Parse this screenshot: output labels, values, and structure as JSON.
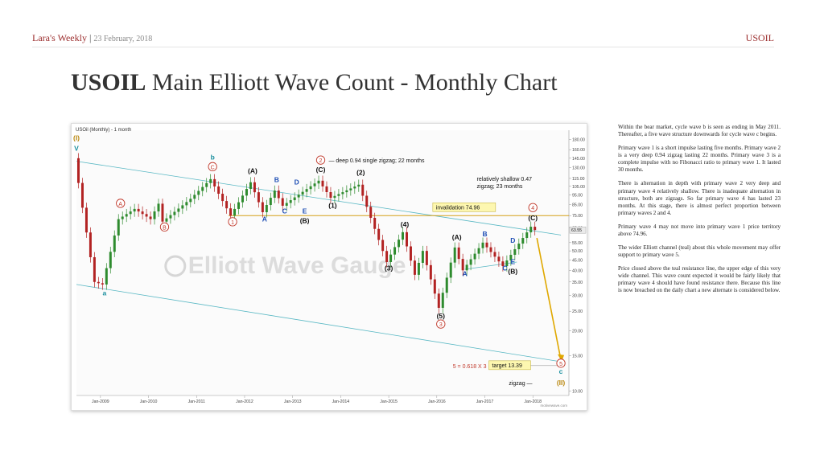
{
  "header": {
    "brand": "Lara's Weekly",
    "separator": "|",
    "date": "23 February, 2018",
    "ticker": "USOIL"
  },
  "title": {
    "bold": "USOIL",
    "rest": "Main Elliott Wave Count - Monthly Chart"
  },
  "notes": [
    "Within the bear market, cycle wave b is seen as ending in May 2011. Thereafter, a five wave structure downwards for cycle wave c begins.",
    "Primary wave 1 is a short impulse lasting five months. Primary wave 2 is a very deep 0.94 zigzag lasting 22 months. Primary wave 3 is a complete impulse with no Fibonacci ratio to primary wave 1. It lasted 30 months.",
    "There is alternation in depth with primary wave 2 very deep and primary wave 4 relatively shallow. There is inadequate alternation in structure, both are zigzags. So far primary wave 4 has lasted 23 months. At this stage, there is almost perfect proportion between primary waves 2 and 4.",
    "Primary wave 4 may not move into primary wave 1 price territory above 74.96.",
    "The wider Elliott channel (teal) about this whole movement may offer support to primary wave 5.",
    "Price closed above the teal resistance line, the upper edge of this very wide channel. This wave count expected it would be fairly likely that primary wave 4 should have found resistance there. Because this line is now breached on the daily chart a new alternate is considered below."
  ],
  "chart_data": {
    "type": "candlestick",
    "title": "USOil (Monthly) - 1 month",
    "watermark": "Elliott Wave Gauge",
    "credit": "motivewave.com",
    "y_scale": "log",
    "ylim": [
      9.5,
      200
    ],
    "y_ticks": [
      10.0,
      15.0,
      20.0,
      25.0,
      30.0,
      35.0,
      40.0,
      45.0,
      50.0,
      55.0,
      65.0,
      75.0,
      85.0,
      95.0,
      105.0,
      115.0,
      130.0,
      145.0,
      160.0,
      180.0
    ],
    "last_price_label": "63.55",
    "x_ticks": [
      "Jan-2009",
      "Jan-2010",
      "Jan-2011",
      "Jan-2012",
      "Jan-2013",
      "Jan-2014",
      "Jan-2015",
      "Jan-2016",
      "Jan-2017",
      "Jan-2018"
    ],
    "price_path": [
      {
        "t": "2008-07",
        "price": 145
      },
      {
        "t": "2008-12",
        "price": 35
      },
      {
        "t": "2009-02",
        "price": 34
      },
      {
        "t": "2009-06",
        "price": 72
      },
      {
        "t": "2009-10",
        "price": 81
      },
      {
        "t": "2010-02",
        "price": 72
      },
      {
        "t": "2010-04",
        "price": 86
      },
      {
        "t": "2010-05",
        "price": 70
      },
      {
        "t": "2010-12",
        "price": 91
      },
      {
        "t": "2011-05",
        "price": 114
      },
      {
        "t": "2011-10",
        "price": 75
      },
      {
        "t": "2012-03",
        "price": 110
      },
      {
        "t": "2012-06",
        "price": 78
      },
      {
        "t": "2012-09",
        "price": 100
      },
      {
        "t": "2012-11",
        "price": 84
      },
      {
        "t": "2013-08",
        "price": 112
      },
      {
        "t": "2013-11",
        "price": 92
      },
      {
        "t": "2014-06",
        "price": 107
      },
      {
        "t": "2015-01",
        "price": 44
      },
      {
        "t": "2015-05",
        "price": 62
      },
      {
        "t": "2015-08",
        "price": 38
      },
      {
        "t": "2015-10",
        "price": 50
      },
      {
        "t": "2016-02",
        "price": 26
      },
      {
        "t": "2016-06",
        "price": 52
      },
      {
        "t": "2016-08",
        "price": 40
      },
      {
        "t": "2017-01",
        "price": 55
      },
      {
        "t": "2017-06",
        "price": 42
      },
      {
        "t": "2018-01",
        "price": 66
      },
      {
        "t": "2018-02",
        "price": 63.55
      }
    ],
    "wave_labels": [
      {
        "text": "(I)",
        "t": "2008-07",
        "price": 178,
        "color": "#b8860b",
        "style": "plain"
      },
      {
        "text": "V",
        "t": "2008-07",
        "price": 158,
        "color": "#1a8f9e",
        "style": "plain"
      },
      {
        "text": "a",
        "t": "2009-02",
        "price": 30,
        "color": "#1a8f9e",
        "style": "plain"
      },
      {
        "text": "A",
        "t": "2009-06",
        "price": 84,
        "color": "#c0392b",
        "style": "circle"
      },
      {
        "text": "B",
        "t": "2010-05",
        "price": 64,
        "color": "#c0392b",
        "style": "circle"
      },
      {
        "text": "b",
        "t": "2011-05",
        "price": 143,
        "color": "#1a8f9e",
        "style": "plain"
      },
      {
        "text": "C",
        "t": "2011-05",
        "price": 128,
        "color": "#c0392b",
        "style": "circle"
      },
      {
        "text": "1",
        "t": "2011-10",
        "price": 68,
        "color": "#c0392b",
        "style": "circle"
      },
      {
        "text": "(A)",
        "t": "2012-03",
        "price": 122,
        "color": "#111111",
        "style": "plain"
      },
      {
        "text": "A",
        "t": "2012-06",
        "price": 70,
        "color": "#1f4fb5",
        "style": "plain"
      },
      {
        "text": "B",
        "t": "2012-09",
        "price": 110,
        "color": "#1f4fb5",
        "style": "plain"
      },
      {
        "text": "C",
        "t": "2012-11",
        "price": 77,
        "color": "#1f4fb5",
        "style": "plain"
      },
      {
        "text": "D",
        "t": "2013-02",
        "price": 107,
        "color": "#1f4fb5",
        "style": "plain"
      },
      {
        "text": "E",
        "t": "2013-04",
        "price": 77,
        "color": "#1f4fb5",
        "style": "plain"
      },
      {
        "text": "(B)",
        "t": "2013-04",
        "price": 69,
        "color": "#111111",
        "style": "plain"
      },
      {
        "text": "(C)",
        "t": "2013-08",
        "price": 124,
        "color": "#111111",
        "style": "plain"
      },
      {
        "text": "2",
        "t": "2013-08",
        "price": 138,
        "color": "#c0392b",
        "style": "circle"
      },
      {
        "text": "(1)",
        "t": "2013-11",
        "price": 82,
        "color": "#111111",
        "style": "plain"
      },
      {
        "text": "(2)",
        "t": "2014-06",
        "price": 120,
        "color": "#111111",
        "style": "plain"
      },
      {
        "text": "(3)",
        "t": "2015-01",
        "price": 40,
        "color": "#111111",
        "style": "plain"
      },
      {
        "text": "(4)",
        "t": "2015-05",
        "price": 66,
        "color": "#111111",
        "style": "plain"
      },
      {
        "text": "(5)",
        "t": "2016-02",
        "price": 23,
        "color": "#111111",
        "style": "plain"
      },
      {
        "text": "3",
        "t": "2016-02",
        "price": 21,
        "color": "#c0392b",
        "style": "circle"
      },
      {
        "text": "(A)",
        "t": "2016-06",
        "price": 57,
        "color": "#111111",
        "style": "plain"
      },
      {
        "text": "A",
        "t": "2016-08",
        "price": 37.5,
        "color": "#1f4fb5",
        "style": "plain"
      },
      {
        "text": "B",
        "t": "2017-01",
        "price": 59,
        "color": "#1f4fb5",
        "style": "plain"
      },
      {
        "text": "C",
        "t": "2017-06",
        "price": 40,
        "color": "#1f4fb5",
        "style": "plain"
      },
      {
        "text": "D",
        "t": "2017-08",
        "price": 55,
        "color": "#1f4fb5",
        "style": "plain"
      },
      {
        "text": "E",
        "t": "2017-08",
        "price": 43,
        "color": "#1f4fb5",
        "style": "plain"
      },
      {
        "text": "(B)",
        "t": "2017-08",
        "price": 38.5,
        "color": "#111111",
        "style": "plain"
      },
      {
        "text": "(C)",
        "t": "2018-01",
        "price": 71,
        "color": "#111111",
        "style": "plain"
      },
      {
        "text": "4",
        "t": "2018-01",
        "price": 80,
        "color": "#c0392b",
        "style": "circle"
      },
      {
        "text": "5",
        "t": "2018-08",
        "price": 13.39,
        "color": "#c0392b",
        "style": "circle"
      },
      {
        "text": "c",
        "t": "2018-08",
        "price": 12.2,
        "color": "#1a8f9e",
        "style": "plain"
      },
      {
        "text": "(II)",
        "t": "2018-08",
        "price": 10.7,
        "color": "#b8860b",
        "style": "plain"
      }
    ],
    "annotations": [
      {
        "text": "— deep 0.94 single zigzag; 22 months",
        "t": "2013-10",
        "price": 138
      },
      {
        "text": "relatively shallow 0.47",
        "t": "2016-11",
        "price": 112
      },
      {
        "text": "zigzag; 23 months",
        "t": "2016-11",
        "price": 103
      },
      {
        "text": "5 = 0.618 X 3",
        "t": "2016-05",
        "price": 13.0,
        "color": "#c0392b"
      },
      {
        "text": "zigzag —",
        "t": "2017-07",
        "price": 10.7
      }
    ],
    "invalidation": {
      "label": "invalidation 74.96",
      "price": 74.96
    },
    "target": {
      "label": "target 13.39",
      "price": 13.39
    },
    "channels": [
      {
        "name": "upper",
        "points": [
          {
            "t": "2008-07",
            "price": 140
          },
          {
            "t": "2018-08",
            "price": 60
          }
        ]
      },
      {
        "name": "lower",
        "points": [
          {
            "t": "2008-07",
            "price": 34
          },
          {
            "t": "2018-08",
            "price": 14
          }
        ]
      },
      {
        "name": "wave-b",
        "points": [
          {
            "t": "2016-08",
            "price": 40.5
          },
          {
            "t": "2017-09",
            "price": 44
          }
        ]
      }
    ],
    "projection": [
      {
        "t": "2018-02",
        "price": 58
      },
      {
        "t": "2018-08",
        "price": 14.3
      }
    ],
    "colors": {
      "up": "#2e8b2e",
      "down": "#b22222",
      "channel": "#59b8c4",
      "invalidation": "#d4a017",
      "projection": "#e0a800"
    }
  }
}
